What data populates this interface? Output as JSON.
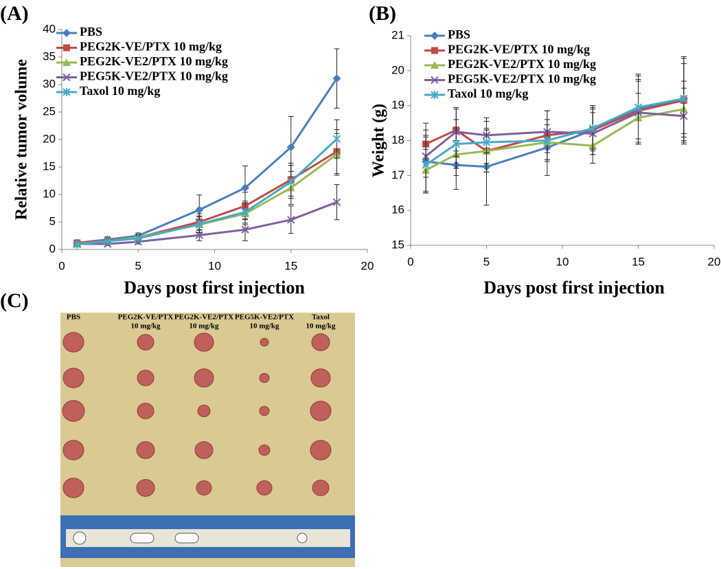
{
  "chart_data": [
    {
      "type": "line",
      "panel_label": "(A)",
      "y_label": "Relative tumor volume",
      "x_label": "Days post first injection",
      "x": [
        1,
        3,
        5,
        9,
        12,
        15,
        18
      ],
      "xlim": [
        0,
        20
      ],
      "xticks": [
        0,
        5,
        10,
        15,
        20
      ],
      "ylim": [
        0,
        40
      ],
      "yticks": [
        0,
        5,
        10,
        15,
        20,
        25,
        30,
        35,
        40
      ],
      "series": [
        {
          "name": "PBS",
          "color": "#4a7ebb",
          "marker": "diamond",
          "values": [
            1.2,
            1.8,
            2.5,
            7.2,
            11.2,
            18.6,
            31.1
          ],
          "errors": [
            0.3,
            0.5,
            0.5,
            2.7,
            4,
            5.6,
            5.4
          ]
        },
        {
          "name": "PEG2K-VE/PTX  10 mg/kg",
          "color": "#be4b48",
          "marker": "square",
          "values": [
            1.2,
            1.6,
            2.2,
            5,
            7.9,
            12.7,
            17.8
          ],
          "errors": [
            0.3,
            0.4,
            0.5,
            1.5,
            2.5,
            3,
            4
          ]
        },
        {
          "name": "PEG2K-VE2/PTX  10 mg/kg",
          "color": "#98b954",
          "marker": "triangle",
          "values": [
            1,
            1.5,
            2.2,
            4.5,
            6.5,
            11.2,
            17.3
          ],
          "errors": [
            0.3,
            0.4,
            0.5,
            1.4,
            2,
            3,
            3.8
          ]
        },
        {
          "name": "PEG5K-VE2/PTX  10 mg/kg",
          "color": "#7d60a0",
          "marker": "x",
          "values": [
            1,
            1,
            1.4,
            2.6,
            3.6,
            5.4,
            8.6
          ],
          "errors": [
            0.2,
            0.3,
            0.4,
            1,
            2,
            2.5,
            3.2
          ]
        },
        {
          "name": "Taxol  10 mg/kg",
          "color": "#46aac5",
          "marker": "asterisk",
          "values": [
            0.9,
            1.5,
            2,
            4.6,
            6.8,
            12.3,
            20.1
          ],
          "errors": [
            0.3,
            0.4,
            0.5,
            1.5,
            2,
            3,
            3.5
          ]
        }
      ]
    },
    {
      "type": "line",
      "panel_label": "(B)",
      "y_label": "Weight (g)",
      "x_label": "Days post first injection",
      "x": [
        1,
        3,
        5,
        9,
        12,
        15,
        18
      ],
      "xlim": [
        0,
        20
      ],
      "xticks": [
        0,
        5,
        10,
        15,
        20
      ],
      "ylim": [
        15,
        21
      ],
      "yticks": [
        15,
        16,
        17,
        18,
        19,
        20,
        21
      ],
      "series": [
        {
          "name": "PBS",
          "color": "#4a7ebb",
          "marker": "diamond",
          "values": [
            17.4,
            17.3,
            17.25,
            17.8,
            18.3,
            18.9,
            19.2
          ],
          "errors": [
            0.9,
            0.7,
            1.1,
            0.8,
            0.7,
            1,
            1.2
          ]
        },
        {
          "name": "PEG2K-VE/PTX  10 mg/kg",
          "color": "#be4b48",
          "marker": "square",
          "values": [
            17.9,
            18.3,
            17.7,
            18.15,
            18.3,
            18.85,
            19.15
          ],
          "errors": [
            0.6,
            0.6,
            0.6,
            0.7,
            0.6,
            0.9,
            1.2
          ]
        },
        {
          "name": "PEG2K-VE2/PTX  10 mg/kg",
          "color": "#98b954",
          "marker": "triangle",
          "values": [
            17.15,
            17.6,
            17.7,
            17.95,
            17.85,
            18.65,
            18.9
          ],
          "errors": [
            0.6,
            0.6,
            0.6,
            0.5,
            0.5,
            0.7,
            0.8
          ]
        },
        {
          "name": "PEG5K-VE2/PTX  10 mg/kg",
          "color": "#7d60a0",
          "marker": "x",
          "values": [
            17.55,
            18.25,
            18.15,
            18.25,
            18.2,
            18.8,
            18.7
          ],
          "errors": [
            0.6,
            0.7,
            0.5,
            0.6,
            0.6,
            0.9,
            0.8
          ]
        },
        {
          "name": "Taxol  10 mg/kg",
          "color": "#46aac5",
          "marker": "asterisk",
          "values": [
            17.3,
            17.9,
            17.95,
            18,
            18.35,
            18.95,
            19.2
          ],
          "errors": [
            0.8,
            0.7,
            0.6,
            0.6,
            0.6,
            0.9,
            1
          ]
        }
      ]
    }
  ],
  "photo": {
    "panel_label": "(C)",
    "columns": [
      [
        "PBS"
      ],
      [
        "PEG2K-VE/PTX",
        "10 mg/kg"
      ],
      [
        "PEG2K-VE2/PTX",
        "10 mg/kg"
      ],
      [
        "PEG5K-VE2/PTX",
        "10 mg/kg"
      ],
      [
        "Taxol",
        "10 mg/kg"
      ]
    ]
  }
}
